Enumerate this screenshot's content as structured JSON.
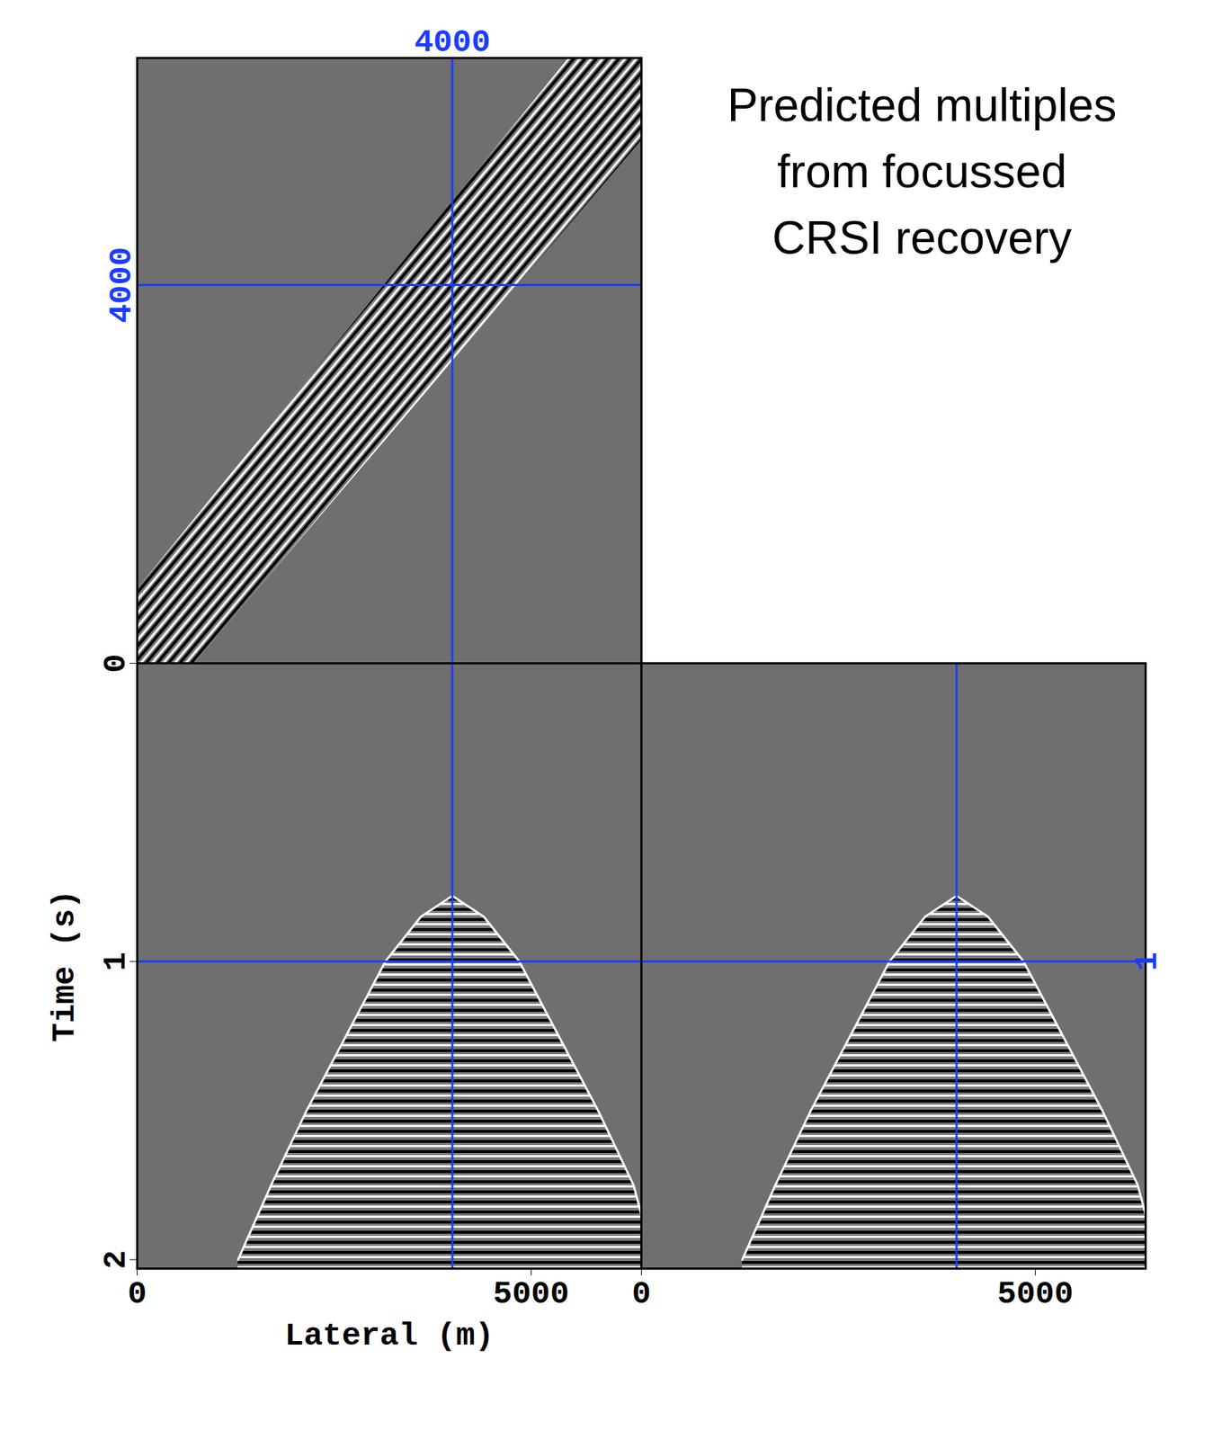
{
  "chart_data": [
    {
      "type": "image",
      "title": "Predicted multiples from focussed CRSI recovery",
      "xlim": [
        0,
        6400
      ],
      "ylim": [
        0,
        6400
      ],
      "tick_labels": false,
      "crosshair": {
        "x": 4000,
        "y": 4000
      },
      "marked_ticks": {
        "x": [
          4000
        ],
        "y": [
          4000
        ]
      },
      "band": {
        "x": [
          0,
          5470,
          6400,
          6400,
          725,
          0
        ],
        "y": [
          790,
          6400,
          6400,
          5535,
          0,
          0
        ]
      }
    },
    {
      "type": "image",
      "x_label": "Lateral (m)",
      "y_label": "Time (s)",
      "xlim": [
        0,
        6400
      ],
      "ylim": [
        0,
        2.03
      ],
      "xticks": [
        0,
        5000
      ],
      "yticks": [
        0,
        1,
        2
      ],
      "crosshair": {
        "x": 4000,
        "y": 1
      },
      "hyperbola": {
        "x": [
          1280,
          1700,
          2150,
          2650,
          3150,
          3600,
          4000,
          4400,
          4850,
          5350,
          5850,
          6300,
          6400
        ],
        "t": [
          2.0,
          1.75,
          1.5,
          1.25,
          1.0,
          0.85,
          0.78,
          0.85,
          1.0,
          1.25,
          1.5,
          1.75,
          1.85
        ]
      }
    },
    {
      "type": "image",
      "xlim": [
        0,
        6400
      ],
      "ylim": [
        0,
        2.03
      ],
      "xticks": [
        0,
        5000
      ],
      "tick_labels": "x",
      "crosshair": {
        "x": 4000,
        "y": 1
      },
      "marked_ticks": {
        "y": [
          1
        ]
      },
      "hyperbola": {
        "x": [
          1280,
          1700,
          2150,
          2650,
          3150,
          3600,
          4000,
          4400,
          4850,
          5350,
          5850,
          6300,
          6400
        ],
        "t": [
          2.0,
          1.75,
          1.5,
          1.25,
          1.0,
          0.85,
          0.78,
          0.85,
          1.0,
          1.25,
          1.5,
          1.75,
          1.85
        ]
      }
    }
  ]
}
